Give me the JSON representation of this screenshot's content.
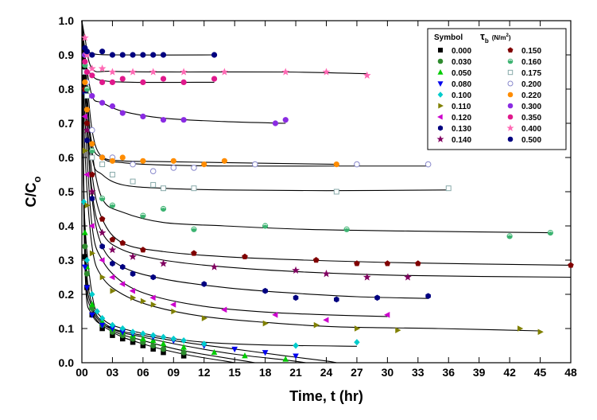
{
  "chart_data": {
    "type": "scatter",
    "title": "",
    "xlabel": "Time, t (hr)",
    "ylabel": "C/C",
    "ylabel_sub": "o",
    "xlim": [
      0,
      48
    ],
    "ylim": [
      0,
      1.0
    ],
    "x_ticks": [
      "00",
      "03",
      "06",
      "09",
      "12",
      "15",
      "18",
      "21",
      "24",
      "27",
      "30",
      "33",
      "36",
      "39",
      "42",
      "45",
      "48"
    ],
    "y_ticks": [
      "0.0",
      "0.1",
      "0.2",
      "0.3",
      "0.4",
      "0.5",
      "0.6",
      "0.7",
      "0.8",
      "0.9",
      "1.0"
    ],
    "grid": false,
    "legend": {
      "placement": "top-right",
      "header_symbol": "Symbol",
      "header_tau": "τ",
      "header_tau_sub": "b",
      "header_unit": "(N/m",
      "header_unit_sup": "2",
      "header_unit_close": ")"
    },
    "series": [
      {
        "name": "0.000",
        "color": "#000000",
        "marker": "square",
        "x": [
          0.3,
          0.5,
          1,
          2,
          3,
          4,
          5,
          6,
          7,
          8,
          10
        ],
        "y": [
          0.31,
          0.22,
          0.14,
          0.1,
          0.08,
          0.07,
          0.06,
          0.05,
          0.04,
          0.03,
          0.02
        ],
        "fit": [
          [
            0,
            1.0
          ],
          [
            0.3,
            0.31
          ],
          [
            1,
            0.15
          ],
          [
            3,
            0.09
          ],
          [
            6,
            0.055
          ],
          [
            10,
            0.025
          ],
          [
            14,
            0.005
          ],
          [
            15,
            0.0
          ]
        ]
      },
      {
        "name": "0.030",
        "color": "#2e8b2e",
        "marker": "circle",
        "x": [
          0.3,
          0.5,
          1,
          2,
          3,
          4,
          5,
          6,
          7,
          8,
          10
        ],
        "y": [
          0.34,
          0.26,
          0.16,
          0.11,
          0.09,
          0.08,
          0.07,
          0.06,
          0.05,
          0.04,
          0.03
        ],
        "fit": [
          [
            0,
            1.0
          ],
          [
            0.3,
            0.34
          ],
          [
            1,
            0.16
          ],
          [
            3,
            0.095
          ],
          [
            6,
            0.065
          ],
          [
            10,
            0.035
          ],
          [
            16,
            0.005
          ],
          [
            17,
            0.0
          ]
        ]
      },
      {
        "name": "0.050",
        "color": "#00cc00",
        "marker": "triangle-up",
        "x": [
          0.3,
          0.5,
          1,
          2,
          3,
          4,
          5,
          6,
          7,
          8,
          10,
          13,
          16,
          20
        ],
        "y": [
          0.38,
          0.28,
          0.17,
          0.12,
          0.1,
          0.09,
          0.08,
          0.07,
          0.065,
          0.055,
          0.045,
          0.03,
          0.02,
          0.01
        ],
        "fit": [
          [
            0,
            1.0
          ],
          [
            0.3,
            0.38
          ],
          [
            1,
            0.17
          ],
          [
            3,
            0.1
          ],
          [
            6,
            0.075
          ],
          [
            10,
            0.05
          ],
          [
            15,
            0.025
          ],
          [
            20,
            0.008
          ],
          [
            22,
            0.0
          ]
        ]
      },
      {
        "name": "0.080",
        "color": "#0000ee",
        "marker": "triangle-down",
        "x": [
          0.3,
          0.5,
          1,
          2,
          3,
          4,
          5,
          7,
          9,
          12,
          15,
          18,
          21
        ],
        "y": [
          0.28,
          0.22,
          0.14,
          0.11,
          0.1,
          0.09,
          0.085,
          0.075,
          0.065,
          0.05,
          0.04,
          0.03,
          0.02
        ],
        "fit": [
          [
            0,
            1.0
          ],
          [
            0.3,
            0.28
          ],
          [
            1,
            0.14
          ],
          [
            3,
            0.1
          ],
          [
            6,
            0.08
          ],
          [
            10,
            0.06
          ],
          [
            15,
            0.04
          ],
          [
            20,
            0.02
          ],
          [
            24,
            0.005
          ],
          [
            25,
            0.0
          ]
        ]
      },
      {
        "name": "0.100",
        "color": "#00cccc",
        "marker": "diamond",
        "x": [
          0.2,
          0.5,
          1,
          1.5,
          2,
          3,
          4,
          5,
          6,
          7,
          8,
          9,
          10,
          12,
          21,
          27
        ],
        "y": [
          0.47,
          0.3,
          0.2,
          0.15,
          0.13,
          0.11,
          0.1,
          0.09,
          0.085,
          0.08,
          0.075,
          0.07,
          0.065,
          0.055,
          0.05,
          0.06
        ],
        "fit": [
          [
            0,
            1.0
          ],
          [
            0.2,
            0.47
          ],
          [
            1,
            0.2
          ],
          [
            2,
            0.13
          ],
          [
            4,
            0.1
          ],
          [
            8,
            0.075
          ],
          [
            12,
            0.06
          ],
          [
            18,
            0.052
          ],
          [
            27,
            0.048
          ]
        ]
      },
      {
        "name": "0.110",
        "color": "#808000",
        "marker": "triangle-right",
        "x": [
          0.3,
          0.5,
          1,
          2,
          3,
          5,
          6,
          7,
          9,
          12,
          18,
          23,
          27,
          31,
          43,
          45
        ],
        "y": [
          0.62,
          0.46,
          0.32,
          0.25,
          0.21,
          0.19,
          0.18,
          0.17,
          0.15,
          0.13,
          0.115,
          0.11,
          0.1,
          0.095,
          0.1,
          0.09
        ],
        "fit": [
          [
            0,
            1.0
          ],
          [
            0.3,
            0.62
          ],
          [
            1,
            0.34
          ],
          [
            2,
            0.25
          ],
          [
            4,
            0.2
          ],
          [
            7,
            0.165
          ],
          [
            12,
            0.135
          ],
          [
            18,
            0.118
          ],
          [
            25,
            0.105
          ],
          [
            35,
            0.1
          ],
          [
            45,
            0.093
          ]
        ]
      },
      {
        "name": "0.120",
        "color": "#cc00cc",
        "marker": "triangle-left",
        "x": [
          0.3,
          0.5,
          1,
          2,
          3,
          4,
          5,
          7,
          9,
          14,
          19,
          24,
          30
        ],
        "y": [
          0.72,
          0.55,
          0.4,
          0.3,
          0.25,
          0.23,
          0.21,
          0.19,
          0.17,
          0.155,
          0.14,
          0.125,
          0.14
        ],
        "fit": [
          [
            0,
            1.0
          ],
          [
            0.3,
            0.72
          ],
          [
            1,
            0.4
          ],
          [
            2,
            0.3
          ],
          [
            4,
            0.235
          ],
          [
            7,
            0.195
          ],
          [
            12,
            0.165
          ],
          [
            18,
            0.148
          ],
          [
            24,
            0.14
          ],
          [
            30,
            0.135
          ]
        ]
      },
      {
        "name": "0.130",
        "color": "#000080",
        "marker": "hexagon",
        "x": [
          0.3,
          0.5,
          1,
          2,
          3,
          4,
          5,
          7,
          12,
          18,
          21,
          25,
          29,
          34
        ],
        "y": [
          0.79,
          0.65,
          0.48,
          0.34,
          0.29,
          0.28,
          0.26,
          0.25,
          0.23,
          0.21,
          0.19,
          0.185,
          0.19,
          0.195
        ],
        "fit": [
          [
            0,
            1.0
          ],
          [
            0.3,
            0.79
          ],
          [
            1,
            0.48
          ],
          [
            2,
            0.34
          ],
          [
            4,
            0.28
          ],
          [
            8,
            0.245
          ],
          [
            14,
            0.22
          ],
          [
            20,
            0.205
          ],
          [
            27,
            0.193
          ],
          [
            34,
            0.188
          ]
        ]
      },
      {
        "name": "0.140",
        "color": "#800060",
        "marker": "star",
        "x": [
          0.3,
          0.5,
          1,
          2,
          3,
          5,
          8,
          13,
          21,
          24,
          28,
          32
        ],
        "y": [
          0.8,
          0.68,
          0.5,
          0.38,
          0.33,
          0.31,
          0.29,
          0.28,
          0.27,
          0.26,
          0.25,
          0.25
        ],
        "fit": [
          [
            0,
            1.0
          ],
          [
            0.3,
            0.8
          ],
          [
            1,
            0.5
          ],
          [
            2,
            0.38
          ],
          [
            4,
            0.33
          ],
          [
            8,
            0.3
          ],
          [
            14,
            0.28
          ],
          [
            22,
            0.265
          ],
          [
            32,
            0.255
          ],
          [
            48,
            0.25
          ]
        ]
      },
      {
        "name": "0.150",
        "color": "#800000",
        "marker": "pentagon",
        "x": [
          0.3,
          0.5,
          1,
          2,
          3,
          4,
          6,
          11,
          16,
          23,
          27,
          30,
          33,
          48
        ],
        "y": [
          0.8,
          0.7,
          0.55,
          0.42,
          0.36,
          0.35,
          0.33,
          0.32,
          0.31,
          0.3,
          0.29,
          0.29,
          0.29,
          0.285
        ],
        "fit": [
          [
            0,
            1.0
          ],
          [
            0.3,
            0.8
          ],
          [
            1,
            0.55
          ],
          [
            2,
            0.42
          ],
          [
            4,
            0.35
          ],
          [
            8,
            0.325
          ],
          [
            14,
            0.31
          ],
          [
            22,
            0.3
          ],
          [
            32,
            0.292
          ],
          [
            48,
            0.285
          ]
        ]
      },
      {
        "name": "0.160",
        "color": "#3cb371",
        "marker": "circle-half",
        "x": [
          0.3,
          0.5,
          1,
          2,
          3,
          6,
          8,
          11,
          18,
          26,
          42,
          46
        ],
        "y": [
          0.87,
          0.8,
          0.62,
          0.48,
          0.46,
          0.43,
          0.45,
          0.39,
          0.4,
          0.39,
          0.37,
          0.38
        ],
        "fit": [
          [
            0,
            1.0
          ],
          [
            0.3,
            0.87
          ],
          [
            1,
            0.62
          ],
          [
            2,
            0.48
          ],
          [
            4,
            0.44
          ],
          [
            8,
            0.41
          ],
          [
            14,
            0.4
          ],
          [
            22,
            0.39
          ],
          [
            32,
            0.385
          ],
          [
            46,
            0.38
          ]
        ]
      },
      {
        "name": "0.175",
        "color": "#88aaaa",
        "marker": "square-open",
        "x": [
          0.3,
          0.5,
          1,
          2,
          3,
          5,
          7,
          8,
          11,
          25,
          36
        ],
        "y": [
          0.85,
          0.78,
          0.6,
          0.58,
          0.55,
          0.53,
          0.52,
          0.51,
          0.51,
          0.5,
          0.51
        ],
        "fit": [
          [
            0,
            1.0
          ],
          [
            0.3,
            0.85
          ],
          [
            1,
            0.6
          ],
          [
            2,
            0.55
          ],
          [
            4,
            0.52
          ],
          [
            8,
            0.51
          ],
          [
            14,
            0.505
          ],
          [
            24,
            0.503
          ],
          [
            36,
            0.505
          ]
        ]
      },
      {
        "name": "0.200",
        "color": "#8888cc",
        "marker": "circle-open",
        "x": [
          0.3,
          0.5,
          1,
          2,
          3,
          5,
          7,
          9,
          11,
          17,
          27,
          34
        ],
        "y": [
          0.9,
          0.82,
          0.68,
          0.6,
          0.6,
          0.58,
          0.56,
          0.57,
          0.57,
          0.58,
          0.58,
          0.58
        ],
        "fit": [
          [
            0,
            1.0
          ],
          [
            0.3,
            0.9
          ],
          [
            1,
            0.68
          ],
          [
            2,
            0.6
          ],
          [
            4,
            0.585
          ],
          [
            8,
            0.578
          ],
          [
            15,
            0.575
          ],
          [
            25,
            0.575
          ],
          [
            34,
            0.575
          ]
        ]
      },
      {
        "name": "0.220",
        "color": "#ff8c00",
        "marker": "circle",
        "x": [
          0.3,
          0.5,
          1,
          2,
          3,
          4,
          6,
          9,
          12,
          14,
          25
        ],
        "y": [
          0.82,
          0.74,
          0.64,
          0.6,
          0.59,
          0.6,
          0.59,
          0.59,
          0.58,
          0.59,
          0.58
        ],
        "fit": [
          [
            0,
            1.0
          ],
          [
            0.3,
            0.82
          ],
          [
            1,
            0.64
          ],
          [
            2,
            0.6
          ],
          [
            4,
            0.59
          ],
          [
            8,
            0.588
          ],
          [
            14,
            0.585
          ],
          [
            25,
            0.58
          ]
        ]
      },
      {
        "name": "0.300",
        "color": "#8a2be2",
        "marker": "circle",
        "x": [
          0.3,
          0.5,
          1,
          2,
          3,
          4,
          6,
          8,
          10,
          19,
          20
        ],
        "y": [
          0.9,
          0.85,
          0.78,
          0.76,
          0.75,
          0.73,
          0.72,
          0.71,
          0.71,
          0.7,
          0.71
        ],
        "fit": [
          [
            0,
            1.0
          ],
          [
            0.3,
            0.9
          ],
          [
            1,
            0.78
          ],
          [
            2,
            0.76
          ],
          [
            4,
            0.735
          ],
          [
            8,
            0.715
          ],
          [
            14,
            0.705
          ],
          [
            20,
            0.7
          ]
        ]
      },
      {
        "name": "0.350",
        "color": "#e0198c",
        "marker": "circle",
        "x": [
          0.3,
          0.5,
          1,
          2,
          3,
          4,
          6,
          8,
          10,
          13
        ],
        "y": [
          0.88,
          0.85,
          0.84,
          0.82,
          0.82,
          0.83,
          0.82,
          0.83,
          0.82,
          0.83
        ],
        "fit": [
          [
            0,
            1.0
          ],
          [
            0.3,
            0.88
          ],
          [
            1,
            0.84
          ],
          [
            2,
            0.825
          ],
          [
            5,
            0.82
          ],
          [
            13,
            0.82
          ]
        ]
      },
      {
        "name": "0.400",
        "color": "#ff69b4",
        "marker": "star",
        "x": [
          0.3,
          0.5,
          1,
          2,
          3,
          5,
          7,
          10,
          14,
          20,
          24,
          28
        ],
        "y": [
          0.95,
          0.9,
          0.86,
          0.86,
          0.85,
          0.85,
          0.85,
          0.85,
          0.85,
          0.85,
          0.85,
          0.84
        ],
        "fit": [
          [
            0,
            1.0
          ],
          [
            0.3,
            0.95
          ],
          [
            1,
            0.86
          ],
          [
            3,
            0.852
          ],
          [
            10,
            0.85
          ],
          [
            20,
            0.85
          ],
          [
            28,
            0.845
          ]
        ]
      },
      {
        "name": "0.500",
        "color": "#000080",
        "marker": "circle",
        "x": [
          0.3,
          0.5,
          1,
          2,
          3,
          4,
          5,
          6,
          7,
          8,
          13
        ],
        "y": [
          0.92,
          0.91,
          0.9,
          0.91,
          0.9,
          0.9,
          0.9,
          0.9,
          0.9,
          0.9,
          0.9
        ],
        "fit": [
          [
            0,
            1.0
          ],
          [
            0.3,
            0.92
          ],
          [
            1,
            0.905
          ],
          [
            3,
            0.9
          ],
          [
            13,
            0.9
          ]
        ]
      }
    ]
  }
}
